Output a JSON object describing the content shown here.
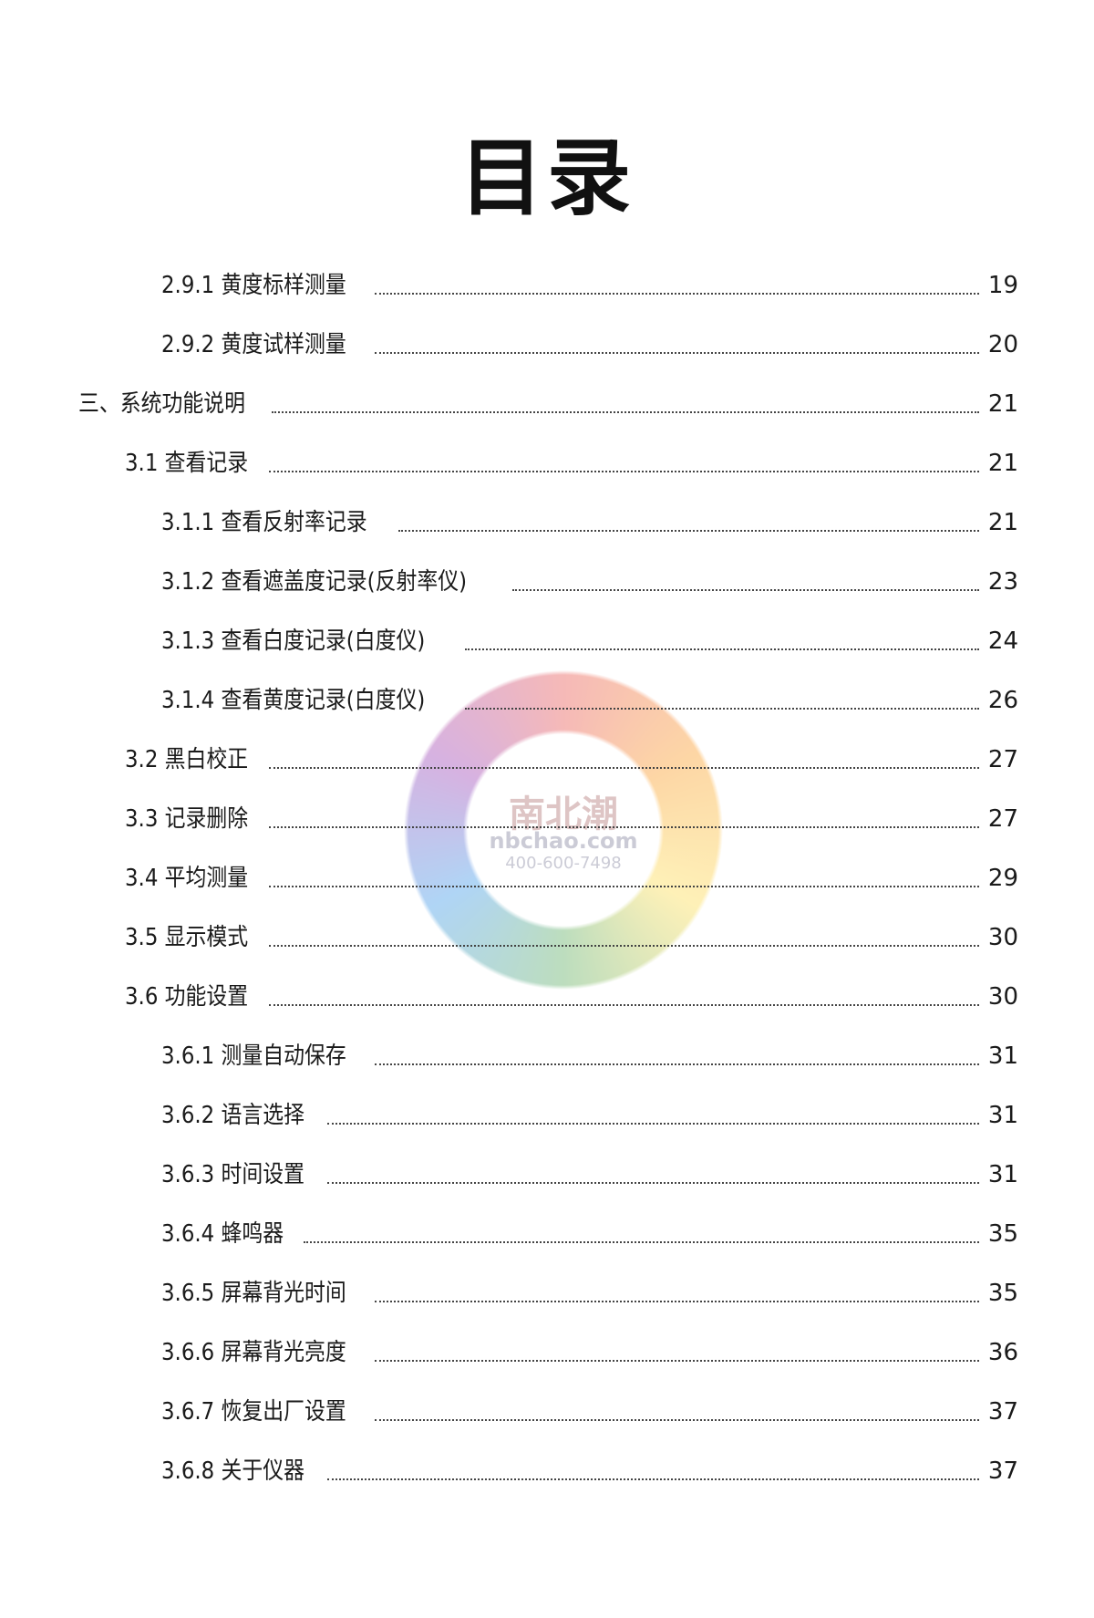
{
  "title": "目录",
  "watermark": {
    "name": "南北潮",
    "site": "nbchao.com",
    "phone": "400-600-7498"
  },
  "entries": [
    {
      "level": 3,
      "label": "2.9.1 黄度标样测量",
      "page": "19"
    },
    {
      "level": 3,
      "label": "2.9.2 黄度试样测量",
      "page": "20"
    },
    {
      "level": 1,
      "label": "三、系统功能说明",
      "page": "21"
    },
    {
      "level": 2,
      "label": "3.1 查看记录",
      "page": "21"
    },
    {
      "level": 3,
      "label": "3.1.1 查看反射率记录",
      "page": "21"
    },
    {
      "level": 3,
      "label": "3.1.2 查看遮盖度记录(反射率仪)",
      "page": "23"
    },
    {
      "level": 3,
      "label": "3.1.3 查看白度记录(白度仪)",
      "page": "24"
    },
    {
      "level": 3,
      "label": "3.1.4 查看黄度记录(白度仪)",
      "page": "26"
    },
    {
      "level": 2,
      "label": "3.2 黑白校正",
      "page": "27"
    },
    {
      "level": 2,
      "label": "3.3 记录删除",
      "page": "27"
    },
    {
      "level": 2,
      "label": "3.4 平均测量",
      "page": "29"
    },
    {
      "level": 2,
      "label": "3.5 显示模式",
      "page": "30"
    },
    {
      "level": 2,
      "label": "3.6 功能设置",
      "page": "30"
    },
    {
      "level": 3,
      "label": "3.6.1 测量自动保存",
      "page": "31"
    },
    {
      "level": 3,
      "label": "3.6.2 语言选择",
      "page": "31"
    },
    {
      "level": 3,
      "label": "3.6.3 时间设置",
      "page": "31"
    },
    {
      "level": 3,
      "label": "3.6.4 蜂鸣器",
      "page": "35"
    },
    {
      "level": 3,
      "label": "3.6.5 屏幕背光时间",
      "page": "35"
    },
    {
      "level": 3,
      "label": "3.6.6 屏幕背光亮度",
      "page": "36"
    },
    {
      "level": 3,
      "label": "3.6.7 恢复出厂设置",
      "page": "37"
    },
    {
      "level": 3,
      "label": "3.6.8 关于仪器",
      "page": "37"
    }
  ]
}
